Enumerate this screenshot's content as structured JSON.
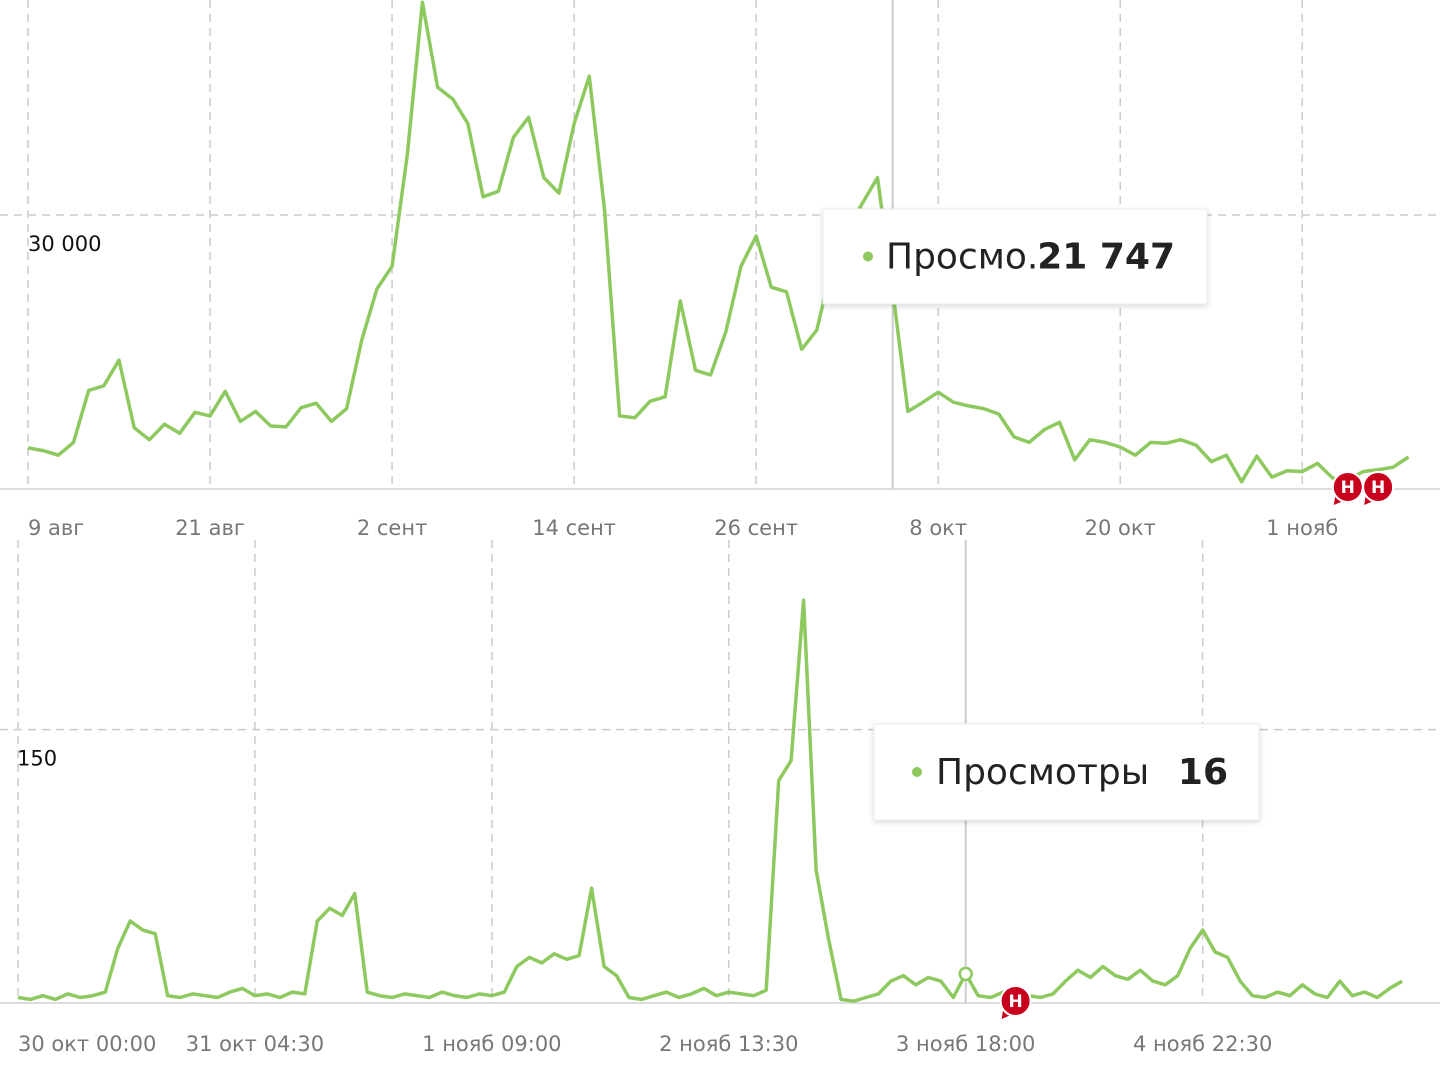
{
  "chart_data": [
    {
      "type": "line",
      "categories": [
        "9 авг",
        null,
        null,
        null,
        null,
        null,
        null,
        null,
        null,
        null,
        null,
        null,
        "21 авг",
        null,
        null,
        null,
        null,
        null,
        null,
        null,
        null,
        null,
        null,
        null,
        "2 сент",
        null,
        null,
        null,
        null,
        null,
        null,
        null,
        null,
        null,
        null,
        null,
        "14 сент",
        null,
        null,
        null,
        null,
        null,
        null,
        null,
        null,
        null,
        null,
        null,
        "26 сент",
        null,
        null,
        null,
        null,
        null,
        null,
        null,
        null,
        null,
        null,
        null,
        "8 окт",
        null,
        null,
        null,
        null,
        null,
        null,
        null,
        null,
        null,
        null,
        null,
        "20 окт",
        null,
        null,
        null,
        null,
        null,
        null,
        null,
        null,
        null,
        null,
        null,
        "1 нояб",
        null,
        null,
        null,
        null,
        null,
        null,
        null
      ],
      "series": [
        {
          "name": "Просмо...",
          "color": "#8dc95f",
          "values": [
            4500,
            4200,
            3700,
            5100,
            10800,
            11300,
            14100,
            6700,
            5400,
            7100,
            6100,
            8400,
            8000,
            10700,
            7400,
            8500,
            6900,
            6800,
            8900,
            9400,
            7400,
            8800,
            16300,
            21900,
            24400,
            36600,
            53300,
            44000,
            42700,
            40000,
            32000,
            32600,
            38500,
            40700,
            34100,
            32400,
            40000,
            45200,
            30600,
            8000,
            7800,
            9600,
            10100,
            20600,
            13000,
            12500,
            17200,
            24400,
            27700,
            22100,
            21600,
            15300,
            17400,
            24500,
            28400,
            31300,
            34100,
            21747,
            8500,
            9500,
            10600,
            9500,
            9100,
            8800,
            8200,
            5700,
            5100,
            6500,
            7300,
            3200,
            5400,
            5100,
            4600,
            3700,
            5100,
            5000,
            5400,
            4800,
            3000,
            3700,
            800,
            3600,
            1300,
            2000,
            1900,
            2800,
            1200,
            1000,
            1900,
            2100,
            2400,
            3500
          ],
          "value_labels": [
            null,
            null,
            null,
            null,
            null,
            null,
            null,
            null,
            null,
            null,
            null,
            null,
            null,
            null,
            null,
            null,
            null,
            null,
            null,
            null,
            null,
            null,
            null,
            null,
            null,
            null,
            null,
            null,
            null,
            null,
            null,
            null,
            null,
            null,
            null,
            null,
            null,
            null,
            null,
            null,
            null,
            null,
            null,
            null,
            null,
            null,
            null,
            null,
            null,
            null,
            null,
            null,
            null,
            null,
            null,
            null,
            null,
            "21 747",
            null,
            null,
            null,
            null,
            null,
            null,
            null,
            null,
            null,
            null,
            null,
            null,
            null,
            null,
            null,
            null,
            null,
            null,
            null,
            null,
            null,
            null,
            null,
            null,
            null,
            null,
            null,
            null,
            null,
            null,
            null,
            null,
            null,
            null
          ]
        }
      ],
      "ylim": [
        0,
        53550
      ],
      "yticks": [
        {
          "value": 30000,
          "label": "30 000"
        }
      ],
      "grid": true,
      "hover": 57,
      "annotations": [
        {
          "label": "Н",
          "at": 87
        },
        {
          "label": "Н",
          "at": 89
        }
      ]
    },
    {
      "type": "line",
      "categories": [
        "30 окт 00:00",
        null,
        null,
        null,
        null,
        null,
        null,
        null,
        null,
        null,
        null,
        null,
        null,
        null,
        null,
        null,
        null,
        null,
        null,
        "31 окт 04:30",
        null,
        null,
        null,
        null,
        null,
        null,
        null,
        null,
        null,
        null,
        null,
        null,
        null,
        null,
        null,
        null,
        null,
        null,
        "1 нояб 09:00",
        null,
        null,
        null,
        null,
        null,
        null,
        null,
        null,
        null,
        null,
        null,
        null,
        null,
        null,
        null,
        null,
        null,
        null,
        "2 нояб 13:30",
        null,
        null,
        null,
        null,
        null,
        null,
        null,
        null,
        null,
        null,
        null,
        null,
        null,
        null,
        null,
        null,
        null,
        null,
        "3 нояб 18:00",
        null,
        null,
        null,
        null,
        null,
        null,
        null,
        null,
        null,
        null,
        null,
        null,
        null,
        null,
        null,
        null,
        null,
        null,
        "4 нояб 22:30",
        null,
        null,
        null,
        null,
        null,
        null,
        null,
        null,
        null,
        null,
        null,
        null,
        null,
        null,
        null,
        null
      ],
      "series": [
        {
          "name": "Просмотры",
          "color": "#8dc95f",
          "values": [
            3,
            2,
            4,
            2,
            5,
            3,
            4,
            6,
            30,
            45,
            40,
            38,
            4,
            3,
            5,
            4,
            3,
            6,
            8,
            4,
            5,
            3,
            6,
            5,
            45,
            52,
            48,
            60,
            6,
            4,
            3,
            5,
            4,
            3,
            6,
            4,
            3,
            5,
            4,
            6,
            20,
            25,
            22,
            27,
            24,
            26,
            63,
            20,
            15,
            3,
            2,
            4,
            6,
            3,
            5,
            8,
            4,
            6,
            5,
            4,
            7,
            122,
            133,
            221,
            73,
            35,
            2,
            1,
            3,
            5,
            12,
            15,
            10,
            14,
            12,
            3,
            16,
            4,
            3,
            6,
            2,
            4,
            3,
            5,
            12,
            18,
            14,
            20,
            15,
            13,
            18,
            12,
            10,
            15,
            30,
            40,
            28,
            25,
            12,
            4,
            3,
            6,
            4,
            10,
            5,
            3,
            12,
            4,
            6,
            3,
            8,
            12
          ]
        }
      ],
      "ylim": [
        0,
        254
      ],
      "yticks": [
        150
      ],
      "grid": true,
      "hover": 76,
      "annotations": [
        {
          "label": "Н",
          "at": 80
        }
      ]
    }
  ]
}
